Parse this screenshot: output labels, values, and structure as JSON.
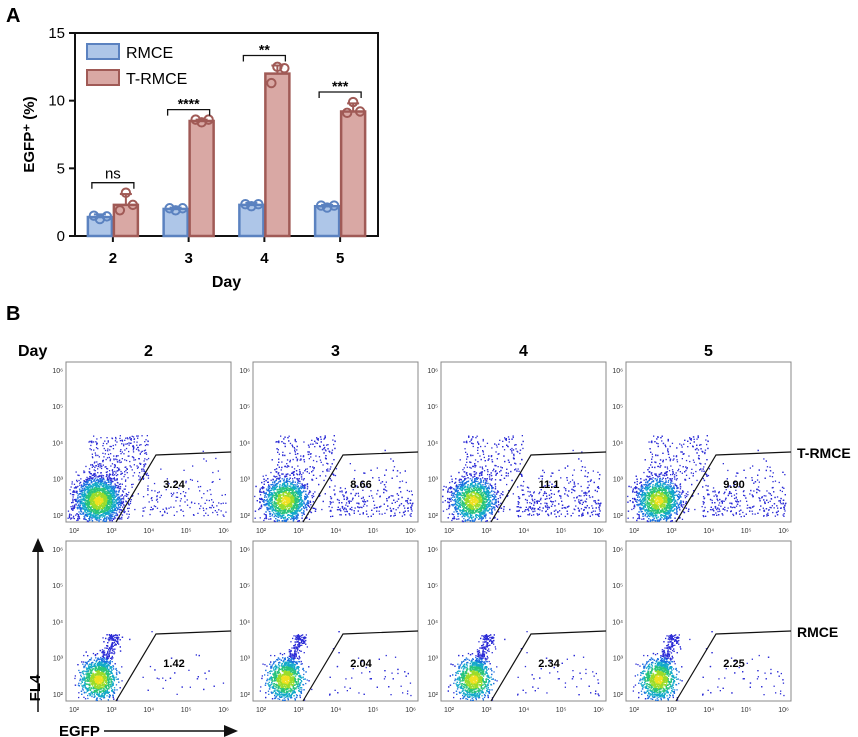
{
  "panel_a": {
    "letter": "A",
    "chart_data": {
      "type": "bar",
      "categories": [
        "2",
        "3",
        "4",
        "5"
      ],
      "series": [
        {
          "name": "RMCE",
          "color": "#aec6e8",
          "edge": "#5b82c0",
          "values": [
            1.4,
            2.0,
            2.3,
            2.2
          ],
          "sd": [
            0.2,
            0.1,
            0.15,
            0.1
          ],
          "points": [
            [
              1.25,
              1.5,
              1.45
            ],
            [
              1.9,
              2.05,
              2.05
            ],
            [
              2.2,
              2.35,
              2.35
            ],
            [
              2.1,
              2.25,
              2.25
            ]
          ]
        },
        {
          "name": "T-RMCE",
          "color": "#d9a8a4",
          "edge": "#a05a56",
          "values": [
            2.3,
            8.5,
            12.0,
            9.2
          ],
          "sd": [
            0.8,
            0.1,
            0.6,
            0.6
          ],
          "points": [
            [
              3.2,
              1.9,
              2.3
            ],
            [
              8.4,
              8.6,
              8.6
            ],
            [
              12.5,
              11.3,
              12.4
            ],
            [
              9.9,
              9.1,
              9.2
            ]
          ]
        }
      ],
      "significance": [
        "ns",
        "****",
        "**",
        "***"
      ],
      "xlabel": "Day",
      "ylabel": "EGFP⁺ (%)",
      "ylim": [
        0,
        15
      ],
      "yticks": [
        "0",
        "5",
        "10",
        "15"
      ],
      "legend": "top-left"
    }
  },
  "panel_b": {
    "letter": "B",
    "day_label": "Day",
    "days": [
      "2",
      "3",
      "4",
      "5"
    ],
    "rows": [
      {
        "label": "T-RMCE",
        "gate_values": [
          "3.24",
          "8.66",
          "11.1",
          "9.90"
        ]
      },
      {
        "label": "RMCE",
        "gate_values": [
          "1.42",
          "2.04",
          "2.34",
          "2.25"
        ]
      }
    ],
    "x_axis": "EGFP",
    "y_axis": "FL4",
    "y_ticks": [
      "10⁶",
      "10⁵",
      "10⁴",
      "10³",
      "10²"
    ],
    "x_ticks": [
      "10²",
      "10³",
      "10⁴",
      "10⁵",
      "10⁶"
    ]
  }
}
